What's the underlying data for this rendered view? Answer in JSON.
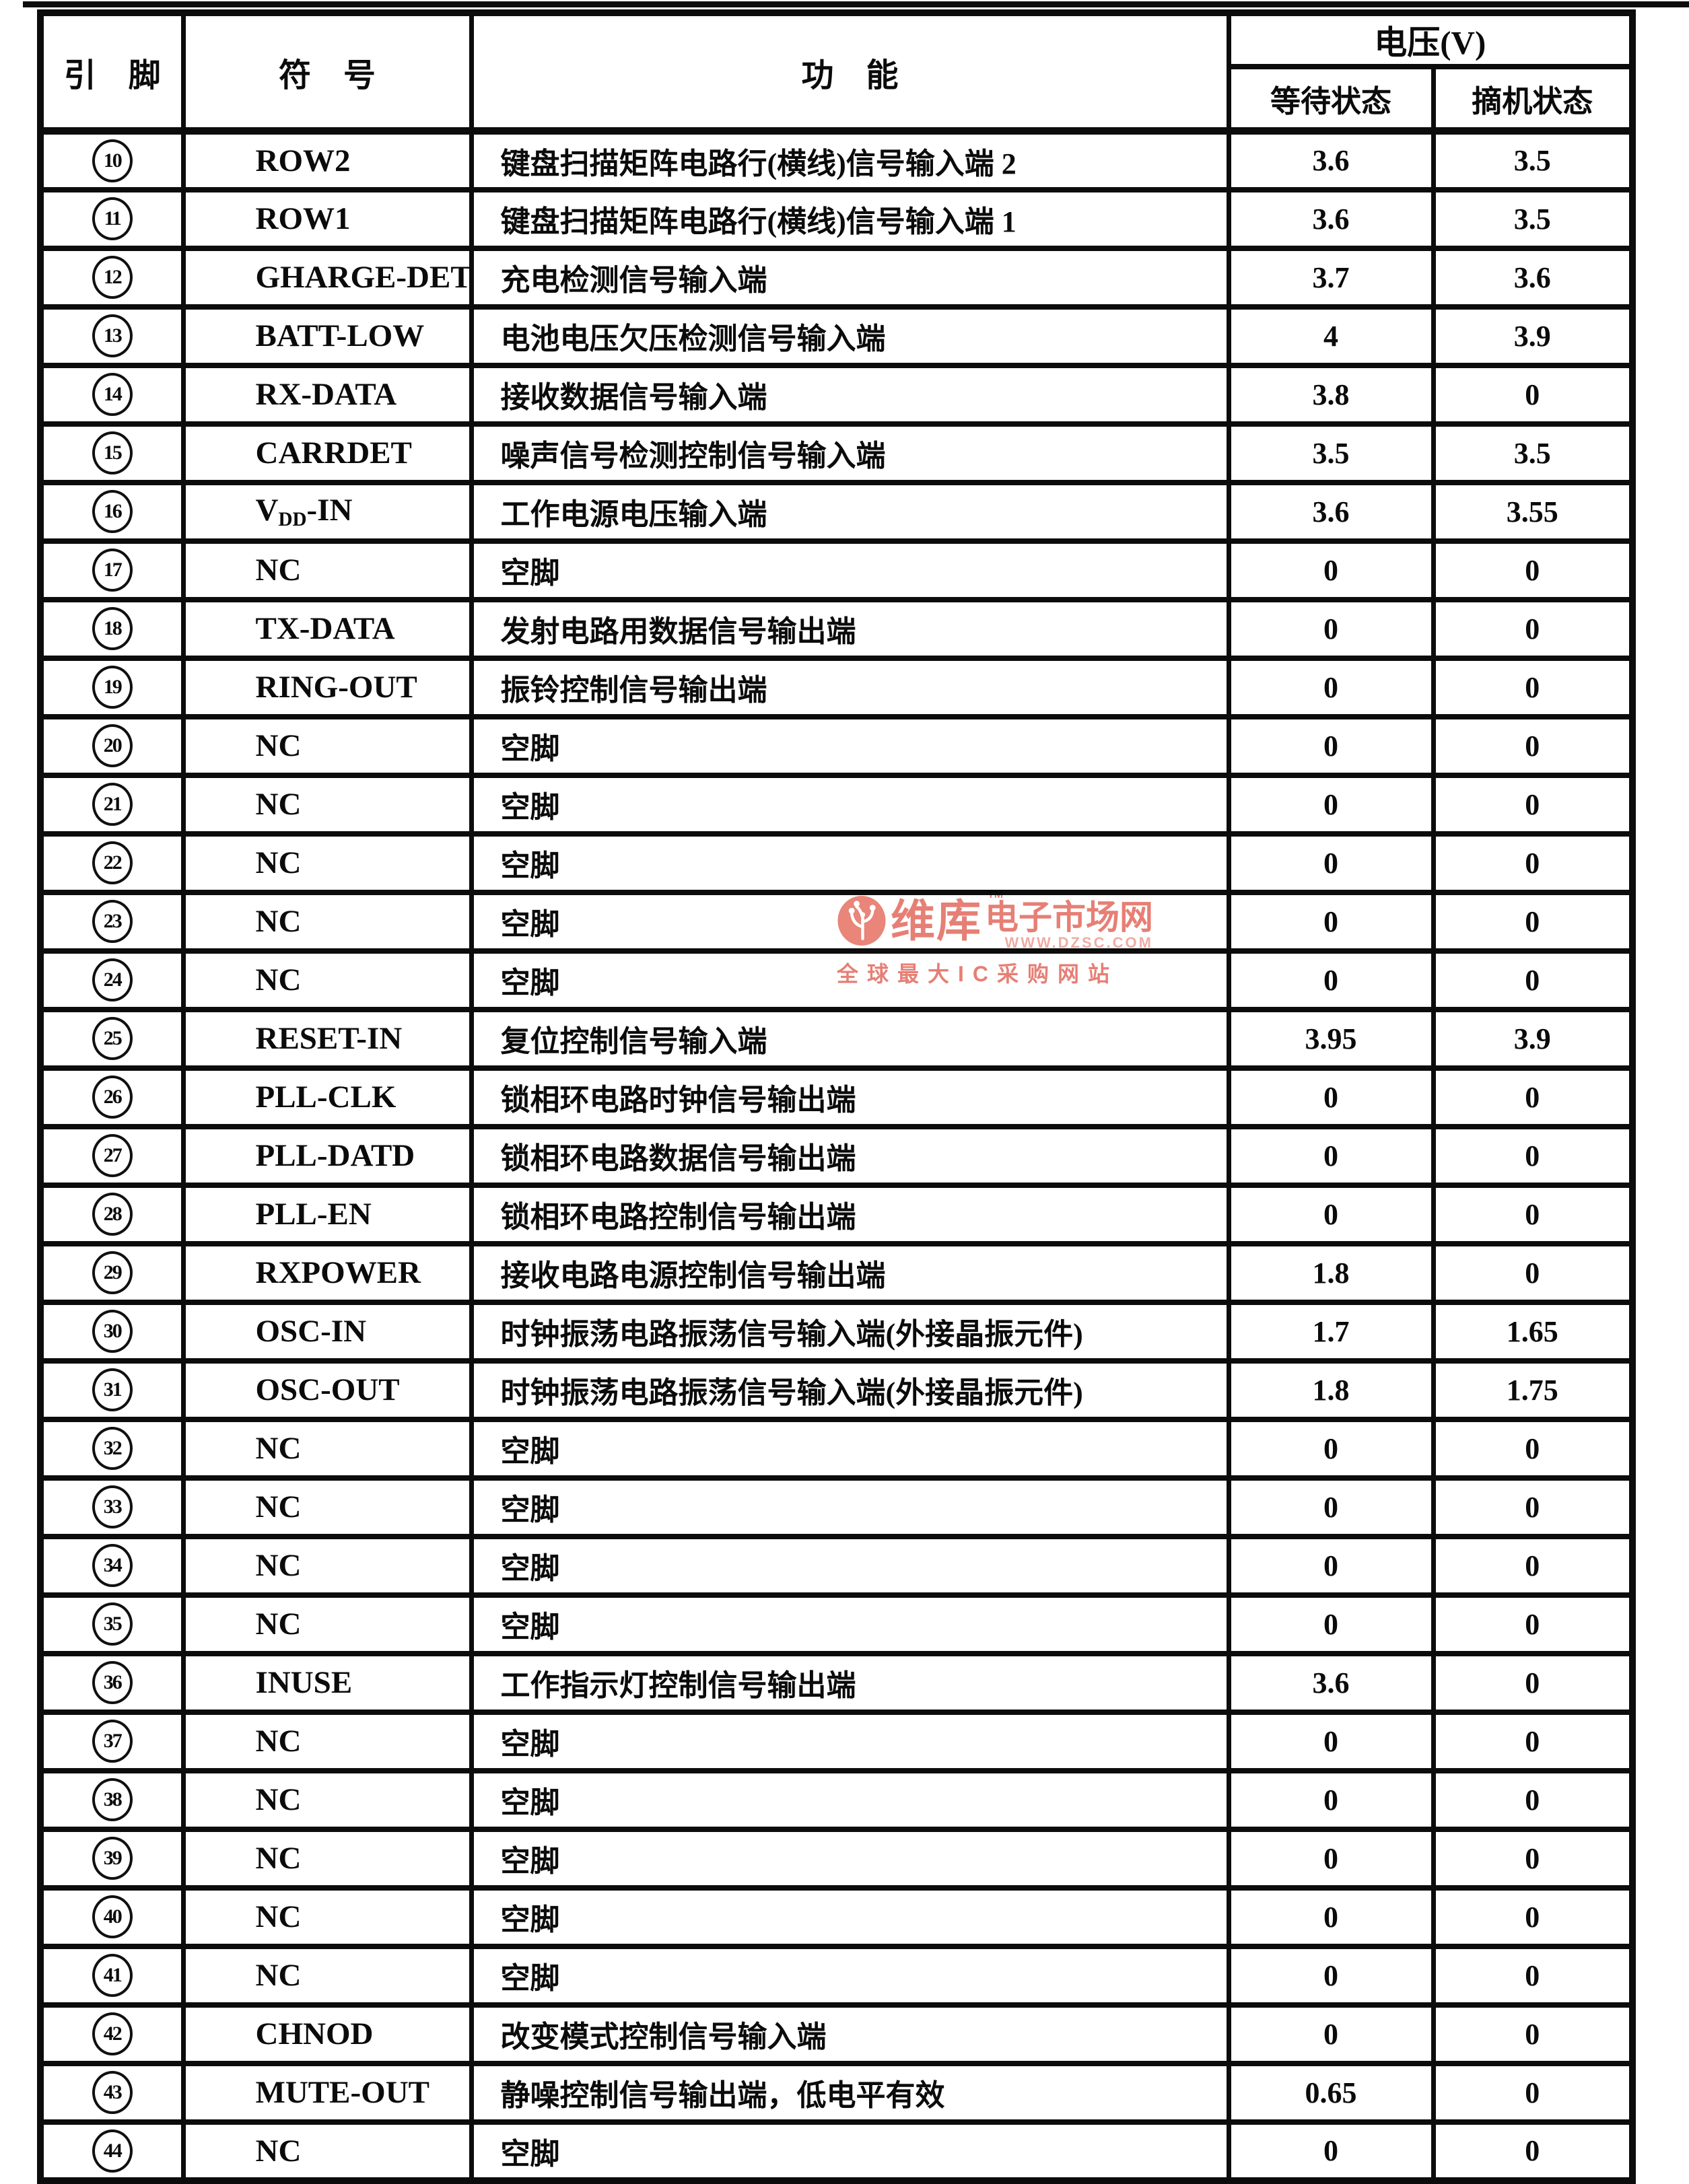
{
  "table": {
    "headers": {
      "pin": "引　脚",
      "symbol": "符　号",
      "function": "功　能",
      "voltage": "电压(V)",
      "wait": "等待状态",
      "offhook": "摘机状态"
    },
    "rows": [
      {
        "pin": "10",
        "symbol": "ROW2",
        "function": "键盘扫描矩阵电路行(横线)信号输入端 2",
        "wait": "3.6",
        "offhook": "3.5"
      },
      {
        "pin": "11",
        "symbol": "ROW1",
        "function": "键盘扫描矩阵电路行(横线)信号输入端 1",
        "wait": "3.6",
        "offhook": "3.5"
      },
      {
        "pin": "12",
        "symbol": "GHARGE-DET",
        "function": "充电检测信号输入端",
        "wait": "3.7",
        "offhook": "3.6"
      },
      {
        "pin": "13",
        "symbol": "BATT-LOW",
        "function": "电池电压欠压检测信号输入端",
        "wait": "4",
        "offhook": "3.9"
      },
      {
        "pin": "14",
        "symbol": "RX-DATA",
        "function": "接收数据信号输入端",
        "wait": "3.8",
        "offhook": "0"
      },
      {
        "pin": "15",
        "symbol": "CARRDET",
        "function": "噪声信号检测控制信号输入端",
        "wait": "3.5",
        "offhook": "3.5"
      },
      {
        "pin": "16",
        "symbol": "VDD-IN",
        "symbol_parts": [
          {
            "t": "V"
          },
          {
            "t": "DD",
            "sub": true
          },
          {
            "t": "-IN"
          }
        ],
        "function": "工作电源电压输入端",
        "wait": "3.6",
        "offhook": "3.55"
      },
      {
        "pin": "17",
        "symbol": "NC",
        "function": "空脚",
        "wait": "0",
        "offhook": "0"
      },
      {
        "pin": "18",
        "symbol": "TX-DATA",
        "function": "发射电路用数据信号输出端",
        "wait": "0",
        "offhook": "0"
      },
      {
        "pin": "19",
        "symbol": "RING-OUT",
        "function": "振铃控制信号输出端",
        "wait": "0",
        "offhook": "0"
      },
      {
        "pin": "20",
        "symbol": "NC",
        "function": "空脚",
        "wait": "0",
        "offhook": "0"
      },
      {
        "pin": "21",
        "symbol": "NC",
        "function": "空脚",
        "wait": "0",
        "offhook": "0"
      },
      {
        "pin": "22",
        "symbol": "NC",
        "function": "空脚",
        "wait": "0",
        "offhook": "0"
      },
      {
        "pin": "23",
        "symbol": "NC",
        "function": "空脚",
        "wait": "0",
        "offhook": "0"
      },
      {
        "pin": "24",
        "symbol": "NC",
        "function": "空脚",
        "wait": "0",
        "offhook": "0"
      },
      {
        "pin": "25",
        "symbol": "RESET-IN",
        "function": "复位控制信号输入端",
        "wait": "3.95",
        "offhook": "3.9"
      },
      {
        "pin": "26",
        "symbol": "PLL-CLK",
        "function": "锁相环电路时钟信号输出端",
        "wait": "0",
        "offhook": "0"
      },
      {
        "pin": "27",
        "symbol": "PLL-DATD",
        "function": "锁相环电路数据信号输出端",
        "wait": "0",
        "offhook": "0"
      },
      {
        "pin": "28",
        "symbol": "PLL-EN",
        "function": "锁相环电路控制信号输出端",
        "wait": "0",
        "offhook": "0"
      },
      {
        "pin": "29",
        "symbol": "RXPOWER",
        "function": "接收电路电源控制信号输出端",
        "wait": "1.8",
        "offhook": "0"
      },
      {
        "pin": "30",
        "symbol": "OSC-IN",
        "function": "时钟振荡电路振荡信号输入端(外接晶振元件)",
        "wait": "1.7",
        "offhook": "1.65"
      },
      {
        "pin": "31",
        "symbol": "OSC-OUT",
        "function": "时钟振荡电路振荡信号输入端(外接晶振元件)",
        "wait": "1.8",
        "offhook": "1.75"
      },
      {
        "pin": "32",
        "symbol": "NC",
        "function": "空脚",
        "wait": "0",
        "offhook": "0"
      },
      {
        "pin": "33",
        "symbol": "NC",
        "function": "空脚",
        "wait": "0",
        "offhook": "0"
      },
      {
        "pin": "34",
        "symbol": "NC",
        "function": "空脚",
        "wait": "0",
        "offhook": "0"
      },
      {
        "pin": "35",
        "symbol": "NC",
        "function": "空脚",
        "wait": "0",
        "offhook": "0"
      },
      {
        "pin": "36",
        "symbol": "INUSE",
        "function": "工作指示灯控制信号输出端",
        "wait": "3.6",
        "offhook": "0"
      },
      {
        "pin": "37",
        "symbol": "NC",
        "function": "空脚",
        "wait": "0",
        "offhook": "0"
      },
      {
        "pin": "38",
        "symbol": "NC",
        "function": "空脚",
        "wait": "0",
        "offhook": "0"
      },
      {
        "pin": "39",
        "symbol": "NC",
        "function": "空脚",
        "wait": "0",
        "offhook": "0"
      },
      {
        "pin": "40",
        "symbol": "NC",
        "function": "空脚",
        "wait": "0",
        "offhook": "0"
      },
      {
        "pin": "41",
        "symbol": "NC",
        "function": "空脚",
        "wait": "0",
        "offhook": "0"
      },
      {
        "pin": "42",
        "symbol": "CHNOD",
        "function": "改变模式控制信号输入端",
        "wait": "0",
        "offhook": "0"
      },
      {
        "pin": "43",
        "symbol": "MUTE-OUT",
        "function": "静噪控制信号输出端，低电平有效",
        "wait": "0.65",
        "offhook": "0"
      },
      {
        "pin": "44",
        "symbol": "NC",
        "function": "空脚",
        "wait": "0",
        "offhook": "0"
      }
    ]
  },
  "watermark": {
    "brand": "维库",
    "tm": "TM",
    "brand_suffix": "电子市场网",
    "url": "WWW.DZSC.COM",
    "tagline": "全球最大IC采购网站",
    "color": "#e4756a"
  }
}
